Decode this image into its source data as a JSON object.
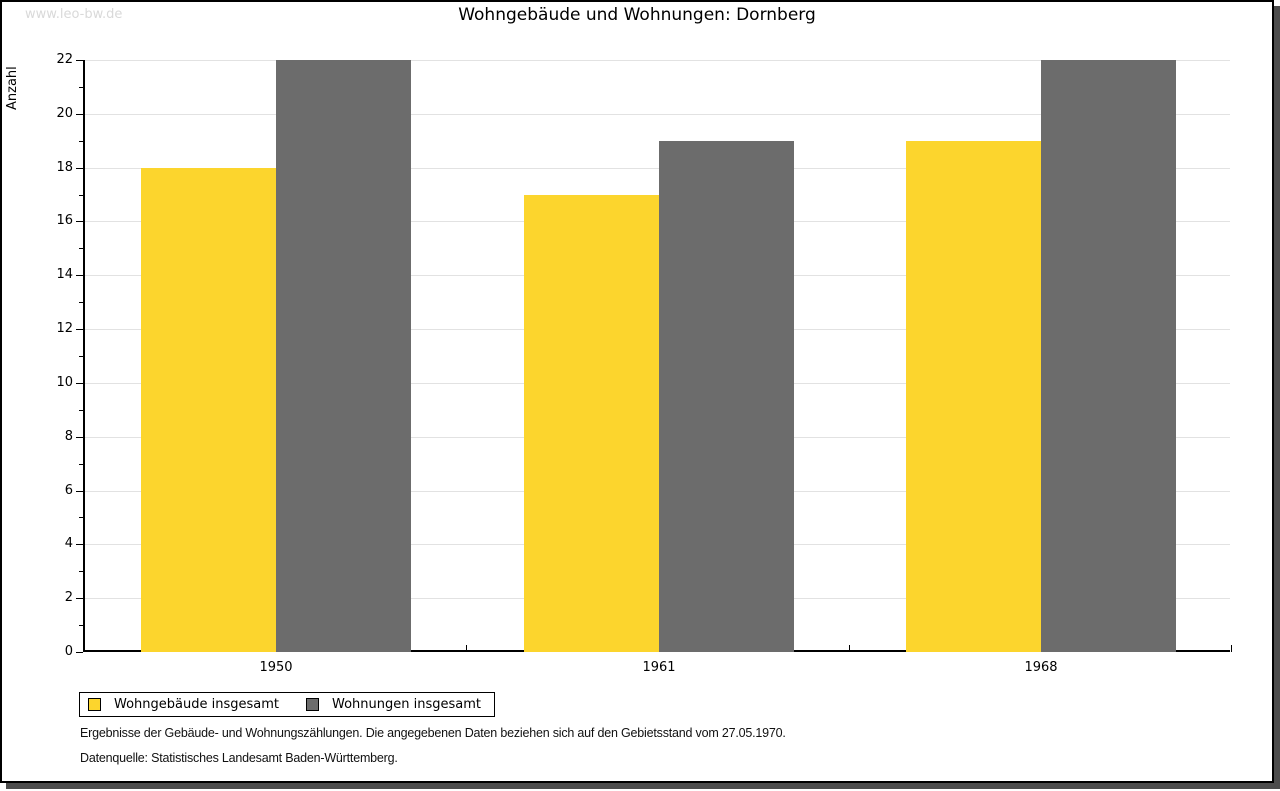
{
  "watermark": "www.leo-bw.de",
  "title": "Wohngebäude und Wohnungen: Dornberg",
  "chart_data": {
    "type": "bar",
    "title": "Wohngebäude und Wohnungen: Dornberg",
    "categories": [
      "1950",
      "1961",
      "1968"
    ],
    "series": [
      {
        "name": "Wohngebäude insgesamt",
        "color": "#FCD52D",
        "values": [
          18,
          17,
          19
        ]
      },
      {
        "name": "Wohnungen insgesamt",
        "color": "#6C6C6C",
        "values": [
          22,
          19,
          22
        ]
      }
    ],
    "xlabel": "",
    "ylabel": "Anzahl",
    "ylim": [
      0,
      22
    ],
    "ytick_step": 2,
    "minor_ticks": true,
    "grid": true,
    "legend_position": "bottom-left"
  },
  "footnotes": [
    "Ergebnisse der Gebäude- und Wohnungszählungen. Die angegebenen Daten beziehen sich auf den Gebietsstand vom 27.05.1970.",
    "Datenquelle: Statistisches Landesamt Baden-Württemberg."
  ],
  "colors": {
    "series_yellow": "#FCD52D",
    "series_gray": "#6C6C6C",
    "gridline": "#e2e2e2",
    "axis": "#000000",
    "frame_border": "#000000",
    "frame_shadow": "#4c4c4c",
    "watermark": "#d9d9d9"
  }
}
